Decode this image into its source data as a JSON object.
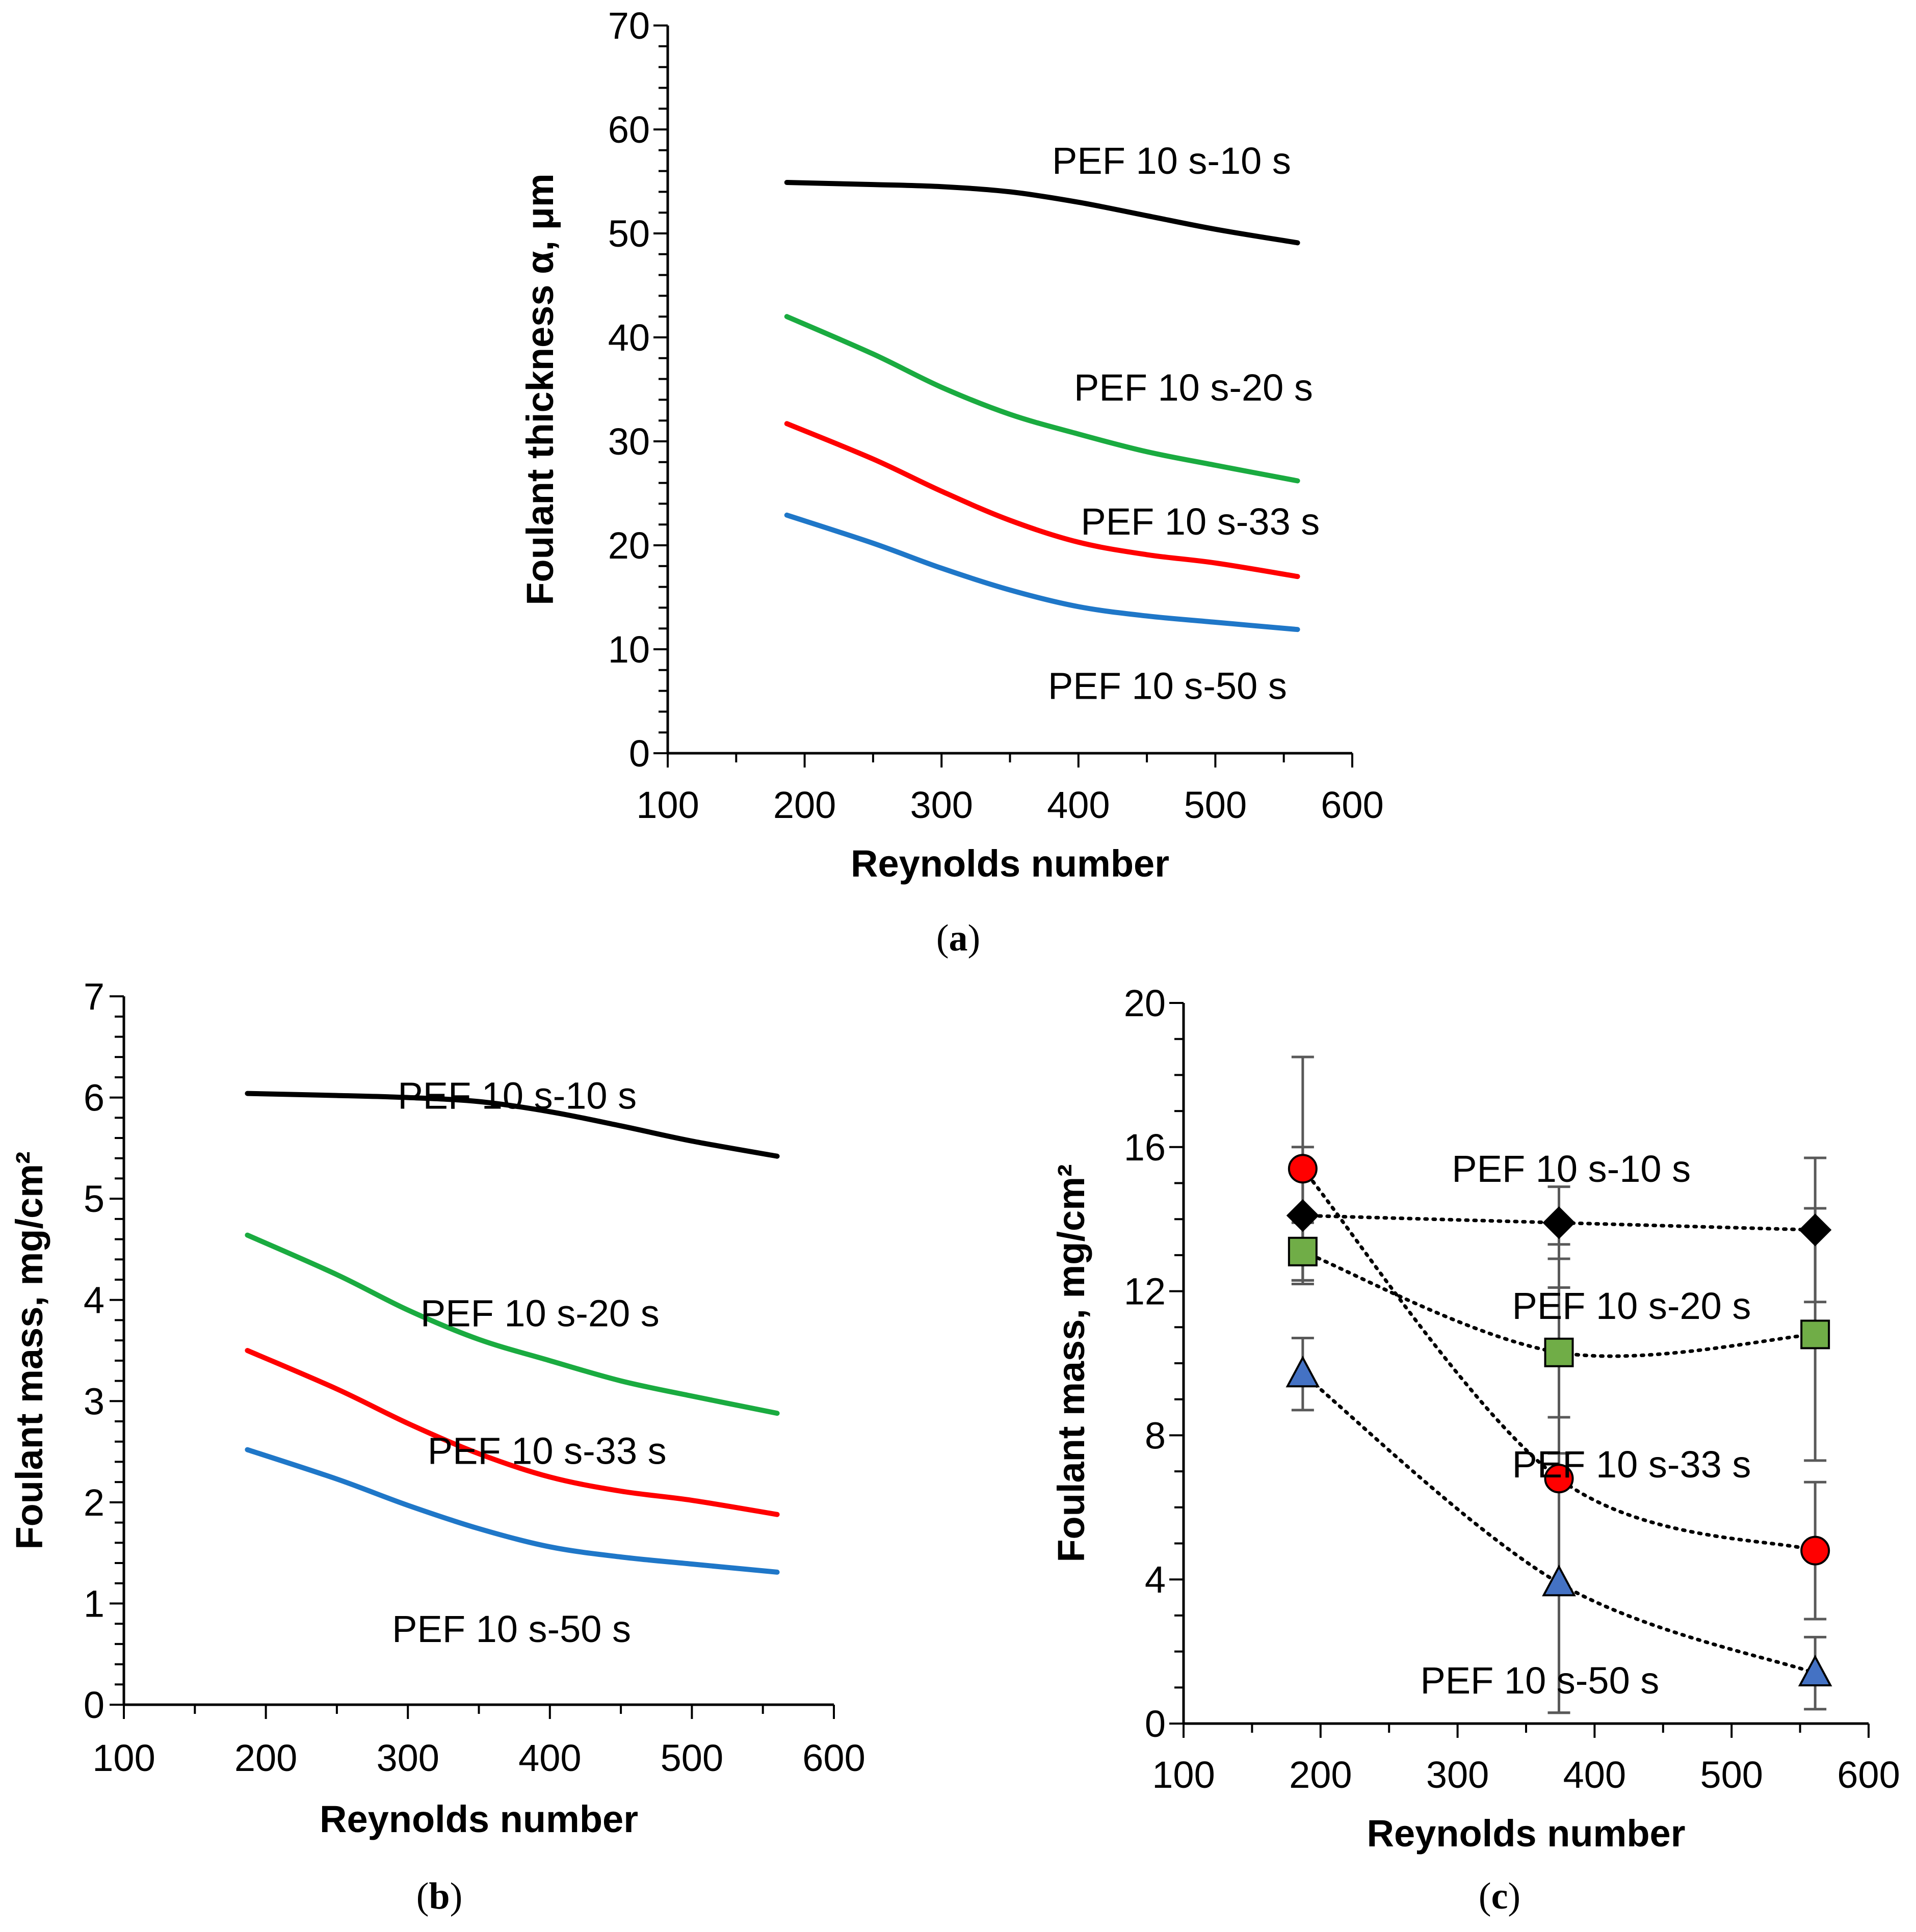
{
  "chart_data": [
    {
      "id": "a",
      "type": "line",
      "caption": {
        "open": "(",
        "letter": "a",
        "close": ")"
      },
      "xlabel": "Reynolds number",
      "ylabel": "Foulant thickness α, μm",
      "xlim": [
        100,
        600
      ],
      "ylim": [
        0,
        70
      ],
      "xticks": [
        100,
        200,
        300,
        400,
        500,
        600
      ],
      "yticks": [
        0,
        10,
        20,
        30,
        40,
        50,
        60,
        70
      ],
      "ytick_labels": [
        "0",
        "10",
        "20",
        "30",
        "40",
        "50",
        "60",
        "70"
      ],
      "x_minor": 50,
      "y_minor": 2,
      "series": [
        {
          "name": "PEF 10 s-10 s",
          "color": "#000000",
          "label_pos": [
            468,
            57
          ],
          "x": [
            187,
            250,
            300,
            350,
            400,
            450,
            500,
            560
          ],
          "y": [
            54.9,
            54.7,
            54.5,
            54.0,
            53.0,
            51.7,
            50.4,
            49.1
          ]
        },
        {
          "name": "PEF 10 s-20 s",
          "color": "#1aab40",
          "label_pos": [
            484,
            35.2
          ],
          "x": [
            187,
            250,
            300,
            350,
            400,
            450,
            500,
            560
          ],
          "y": [
            42.0,
            38.4,
            35.2,
            32.6,
            30.7,
            29.0,
            27.7,
            26.2
          ]
        },
        {
          "name": "PEF 10 s-33 s",
          "color": "#ff0000",
          "label_pos": [
            489,
            22.3
          ],
          "x": [
            187,
            250,
            300,
            350,
            400,
            450,
            500,
            560
          ],
          "y": [
            31.7,
            28.3,
            25.2,
            22.4,
            20.3,
            19.1,
            18.3,
            17.0
          ]
        },
        {
          "name": "PEF 10 s-50 s",
          "color": "#1f77c8",
          "label_pos": [
            465,
            6.5
          ],
          "x": [
            187,
            250,
            300,
            350,
            400,
            450,
            500,
            560
          ],
          "y": [
            22.9,
            20.2,
            17.8,
            15.7,
            14.1,
            13.2,
            12.6,
            11.9
          ]
        }
      ]
    },
    {
      "id": "b",
      "type": "line",
      "caption": {
        "open": "(",
        "letter": "b",
        "close": ")"
      },
      "xlabel": "Reynolds number",
      "ylabel": "Foulant mass, mg/cm²",
      "xlim": [
        100,
        600
      ],
      "ylim": [
        0,
        7
      ],
      "xticks": [
        100,
        200,
        300,
        400,
        500,
        600
      ],
      "yticks": [
        0,
        1,
        2,
        3,
        4,
        5,
        6,
        7
      ],
      "ytick_labels": [
        "0",
        "1",
        "2",
        "3",
        "4",
        "5",
        "6",
        "7"
      ],
      "x_minor": 50,
      "y_minor": 0.2,
      "series": [
        {
          "name": "PEF 10 s-10 s",
          "color": "#000000",
          "label_pos": [
            377,
            6.02
          ],
          "x": [
            187,
            250,
            300,
            350,
            400,
            450,
            500,
            560
          ],
          "y": [
            6.04,
            6.02,
            6.0,
            5.96,
            5.86,
            5.72,
            5.57,
            5.42
          ]
        },
        {
          "name": "PEF 10 s-20 s",
          "color": "#1aab40",
          "label_pos": [
            393,
            3.87
          ],
          "x": [
            187,
            250,
            300,
            350,
            400,
            450,
            500,
            560
          ],
          "y": [
            4.64,
            4.25,
            3.9,
            3.61,
            3.4,
            3.2,
            3.05,
            2.88
          ]
        },
        {
          "name": "PEF 10 s-33 s",
          "color": "#ff0000",
          "label_pos": [
            398,
            2.51
          ],
          "x": [
            187,
            250,
            300,
            350,
            400,
            450,
            500,
            560
          ],
          "y": [
            3.5,
            3.12,
            2.78,
            2.48,
            2.25,
            2.11,
            2.02,
            1.88
          ]
        },
        {
          "name": "PEF 10 s-50 s",
          "color": "#1f77c8",
          "label_pos": [
            373,
            0.75
          ],
          "x": [
            187,
            250,
            300,
            350,
            400,
            450,
            500,
            560
          ],
          "y": [
            2.52,
            2.23,
            1.97,
            1.74,
            1.56,
            1.46,
            1.39,
            1.31
          ]
        }
      ]
    },
    {
      "id": "c",
      "type": "scatter",
      "caption": {
        "open": "(",
        "letter": "c",
        "close": ")"
      },
      "xlabel": "Reynolds number",
      "ylabel": "Foulant mass, mg/cm²",
      "xlim": [
        100,
        600
      ],
      "ylim": [
        0,
        20
      ],
      "xticks": [
        100,
        200,
        300,
        400,
        500,
        600
      ],
      "yticks": [
        0,
        4,
        8,
        12,
        16,
        20
      ],
      "ytick_labels": [
        "0",
        "4",
        "8",
        "12",
        "16",
        "20"
      ],
      "x_minor": 50,
      "y_minor": 1,
      "x": [
        187,
        374,
        561
      ],
      "series": [
        {
          "name": "PEF 10 s-10 s",
          "marker": "diamond",
          "color": "#000000",
          "label_pos": [
            383,
            15.4
          ],
          "y": [
            14.1,
            13.9,
            13.7
          ],
          "err": [
            1.9,
            1.0,
            2.0
          ]
        },
        {
          "name": "PEF 10 s-20 s",
          "marker": "square",
          "color": "#70ad47",
          "label_pos": [
            427,
            11.6
          ],
          "y": [
            13.1,
            10.3,
            10.8
          ],
          "err": [
            0.8,
            1.8,
            3.5
          ]
        },
        {
          "name": "PEF 10 s-33 s",
          "marker": "circle",
          "color": "#ff0000",
          "label_pos": [
            427,
            7.2
          ],
          "y": [
            15.4,
            6.8,
            4.8
          ],
          "err": [
            3.1,
            6.5,
            1.9
          ]
        },
        {
          "name": "PEF 10 s-50 s",
          "marker": "triangle",
          "color": "#4472c4",
          "label_pos": [
            360,
            1.2
          ],
          "y": [
            9.7,
            3.9,
            1.4
          ],
          "err": [
            1.0,
            3.6,
            1.0
          ]
        }
      ]
    }
  ]
}
